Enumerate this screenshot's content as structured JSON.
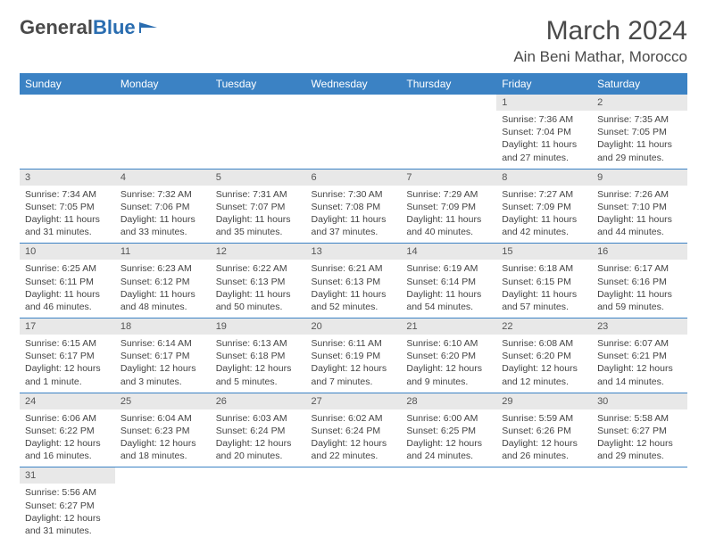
{
  "logo": {
    "text1": "General",
    "text2": "Blue"
  },
  "title": "March 2024",
  "location": "Ain Beni Mathar, Morocco",
  "day_headers": [
    "Sunday",
    "Monday",
    "Tuesday",
    "Wednesday",
    "Thursday",
    "Friday",
    "Saturday"
  ],
  "colors": {
    "header_bg": "#3b82c4",
    "header_fg": "#ffffff",
    "daynum_bg": "#e8e8e8",
    "row_divider": "#3b82c4"
  },
  "weeks": [
    [
      null,
      null,
      null,
      null,
      null,
      {
        "n": "1",
        "sr": "Sunrise: 7:36 AM",
        "ss": "Sunset: 7:04 PM",
        "dl": "Daylight: 11 hours and 27 minutes."
      },
      {
        "n": "2",
        "sr": "Sunrise: 7:35 AM",
        "ss": "Sunset: 7:05 PM",
        "dl": "Daylight: 11 hours and 29 minutes."
      }
    ],
    [
      {
        "n": "3",
        "sr": "Sunrise: 7:34 AM",
        "ss": "Sunset: 7:05 PM",
        "dl": "Daylight: 11 hours and 31 minutes."
      },
      {
        "n": "4",
        "sr": "Sunrise: 7:32 AM",
        "ss": "Sunset: 7:06 PM",
        "dl": "Daylight: 11 hours and 33 minutes."
      },
      {
        "n": "5",
        "sr": "Sunrise: 7:31 AM",
        "ss": "Sunset: 7:07 PM",
        "dl": "Daylight: 11 hours and 35 minutes."
      },
      {
        "n": "6",
        "sr": "Sunrise: 7:30 AM",
        "ss": "Sunset: 7:08 PM",
        "dl": "Daylight: 11 hours and 37 minutes."
      },
      {
        "n": "7",
        "sr": "Sunrise: 7:29 AM",
        "ss": "Sunset: 7:09 PM",
        "dl": "Daylight: 11 hours and 40 minutes."
      },
      {
        "n": "8",
        "sr": "Sunrise: 7:27 AM",
        "ss": "Sunset: 7:09 PM",
        "dl": "Daylight: 11 hours and 42 minutes."
      },
      {
        "n": "9",
        "sr": "Sunrise: 7:26 AM",
        "ss": "Sunset: 7:10 PM",
        "dl": "Daylight: 11 hours and 44 minutes."
      }
    ],
    [
      {
        "n": "10",
        "sr": "Sunrise: 6:25 AM",
        "ss": "Sunset: 6:11 PM",
        "dl": "Daylight: 11 hours and 46 minutes."
      },
      {
        "n": "11",
        "sr": "Sunrise: 6:23 AM",
        "ss": "Sunset: 6:12 PM",
        "dl": "Daylight: 11 hours and 48 minutes."
      },
      {
        "n": "12",
        "sr": "Sunrise: 6:22 AM",
        "ss": "Sunset: 6:13 PM",
        "dl": "Daylight: 11 hours and 50 minutes."
      },
      {
        "n": "13",
        "sr": "Sunrise: 6:21 AM",
        "ss": "Sunset: 6:13 PM",
        "dl": "Daylight: 11 hours and 52 minutes."
      },
      {
        "n": "14",
        "sr": "Sunrise: 6:19 AM",
        "ss": "Sunset: 6:14 PM",
        "dl": "Daylight: 11 hours and 54 minutes."
      },
      {
        "n": "15",
        "sr": "Sunrise: 6:18 AM",
        "ss": "Sunset: 6:15 PM",
        "dl": "Daylight: 11 hours and 57 minutes."
      },
      {
        "n": "16",
        "sr": "Sunrise: 6:17 AM",
        "ss": "Sunset: 6:16 PM",
        "dl": "Daylight: 11 hours and 59 minutes."
      }
    ],
    [
      {
        "n": "17",
        "sr": "Sunrise: 6:15 AM",
        "ss": "Sunset: 6:17 PM",
        "dl": "Daylight: 12 hours and 1 minute."
      },
      {
        "n": "18",
        "sr": "Sunrise: 6:14 AM",
        "ss": "Sunset: 6:17 PM",
        "dl": "Daylight: 12 hours and 3 minutes."
      },
      {
        "n": "19",
        "sr": "Sunrise: 6:13 AM",
        "ss": "Sunset: 6:18 PM",
        "dl": "Daylight: 12 hours and 5 minutes."
      },
      {
        "n": "20",
        "sr": "Sunrise: 6:11 AM",
        "ss": "Sunset: 6:19 PM",
        "dl": "Daylight: 12 hours and 7 minutes."
      },
      {
        "n": "21",
        "sr": "Sunrise: 6:10 AM",
        "ss": "Sunset: 6:20 PM",
        "dl": "Daylight: 12 hours and 9 minutes."
      },
      {
        "n": "22",
        "sr": "Sunrise: 6:08 AM",
        "ss": "Sunset: 6:20 PM",
        "dl": "Daylight: 12 hours and 12 minutes."
      },
      {
        "n": "23",
        "sr": "Sunrise: 6:07 AM",
        "ss": "Sunset: 6:21 PM",
        "dl": "Daylight: 12 hours and 14 minutes."
      }
    ],
    [
      {
        "n": "24",
        "sr": "Sunrise: 6:06 AM",
        "ss": "Sunset: 6:22 PM",
        "dl": "Daylight: 12 hours and 16 minutes."
      },
      {
        "n": "25",
        "sr": "Sunrise: 6:04 AM",
        "ss": "Sunset: 6:23 PM",
        "dl": "Daylight: 12 hours and 18 minutes."
      },
      {
        "n": "26",
        "sr": "Sunrise: 6:03 AM",
        "ss": "Sunset: 6:24 PM",
        "dl": "Daylight: 12 hours and 20 minutes."
      },
      {
        "n": "27",
        "sr": "Sunrise: 6:02 AM",
        "ss": "Sunset: 6:24 PM",
        "dl": "Daylight: 12 hours and 22 minutes."
      },
      {
        "n": "28",
        "sr": "Sunrise: 6:00 AM",
        "ss": "Sunset: 6:25 PM",
        "dl": "Daylight: 12 hours and 24 minutes."
      },
      {
        "n": "29",
        "sr": "Sunrise: 5:59 AM",
        "ss": "Sunset: 6:26 PM",
        "dl": "Daylight: 12 hours and 26 minutes."
      },
      {
        "n": "30",
        "sr": "Sunrise: 5:58 AM",
        "ss": "Sunset: 6:27 PM",
        "dl": "Daylight: 12 hours and 29 minutes."
      }
    ],
    [
      {
        "n": "31",
        "sr": "Sunrise: 5:56 AM",
        "ss": "Sunset: 6:27 PM",
        "dl": "Daylight: 12 hours and 31 minutes."
      },
      null,
      null,
      null,
      null,
      null,
      null
    ]
  ]
}
